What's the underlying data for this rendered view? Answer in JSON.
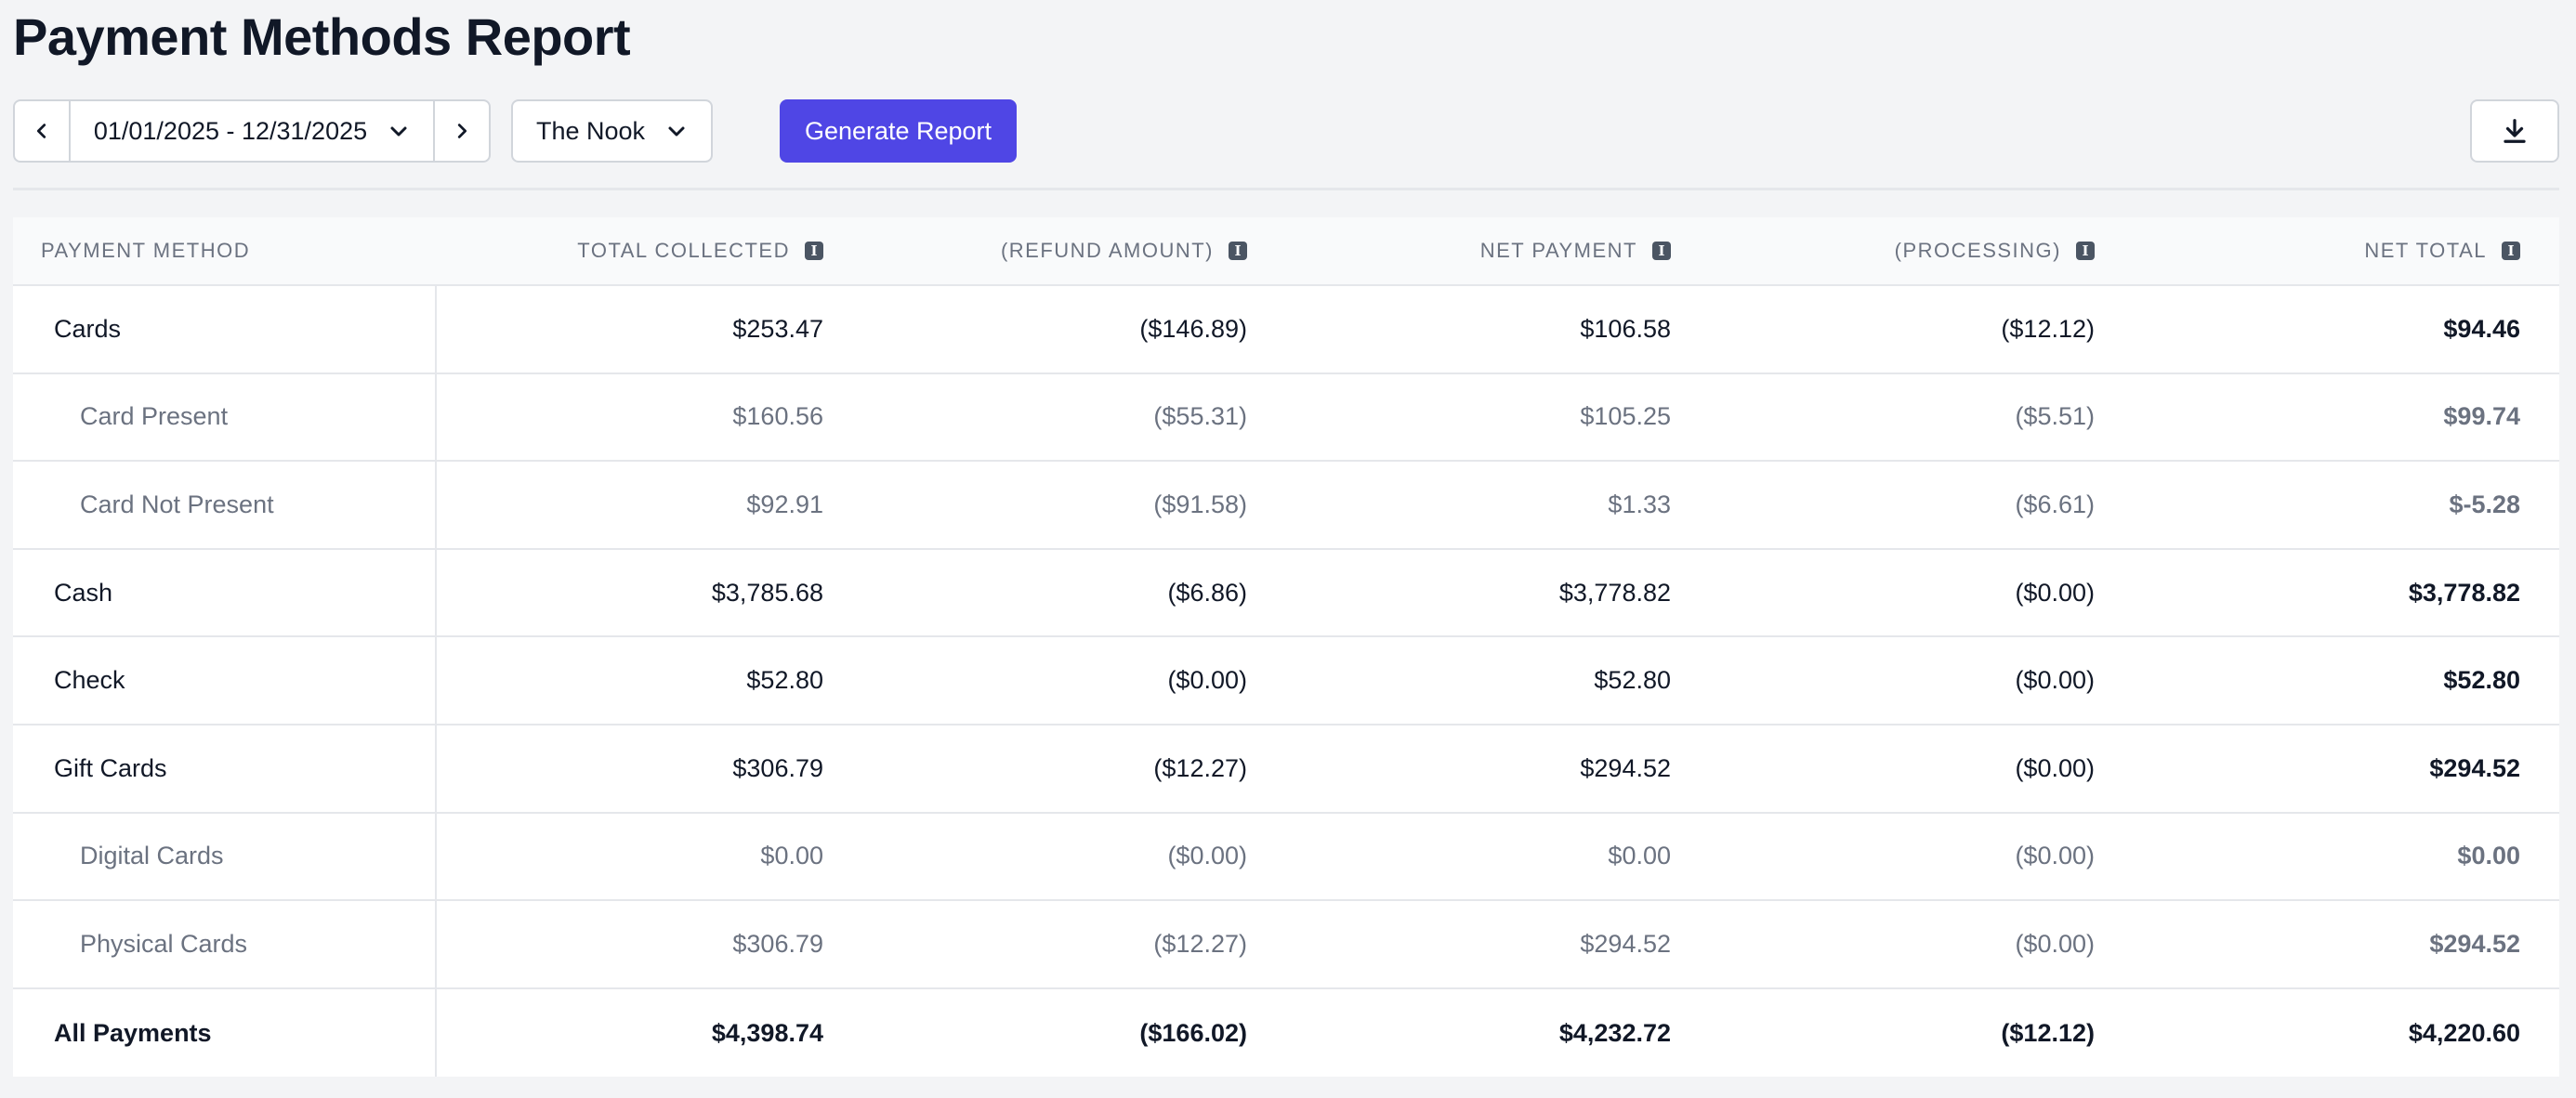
{
  "page": {
    "title": "Payment Methods Report"
  },
  "toolbar": {
    "date_range": "01/01/2025 - 12/31/2025",
    "location": "The Nook",
    "generate_label": "Generate Report"
  },
  "icons": {
    "prev": "chevron-left-icon",
    "next": "chevron-right-icon",
    "dropdown": "chevron-down-icon",
    "download": "download-icon",
    "info": "info-icon"
  },
  "colors": {
    "accent": "#4f46e5",
    "muted_text": "#6b7280",
    "border": "#e5e7eb"
  },
  "table": {
    "headers": [
      "Payment Method",
      "Total Collected",
      "(Refund Amount)",
      "Net Payment",
      "(Processing)",
      "Net Total"
    ],
    "rows": [
      {
        "type": "main",
        "cells": [
          "Cards",
          "$253.47",
          "($146.89)",
          "$106.58",
          "($12.12)",
          "$94.46"
        ]
      },
      {
        "type": "sub",
        "cells": [
          "Card Present",
          "$160.56",
          "($55.31)",
          "$105.25",
          "($5.51)",
          "$99.74"
        ]
      },
      {
        "type": "sub",
        "cells": [
          "Card Not Present",
          "$92.91",
          "($91.58)",
          "$1.33",
          "($6.61)",
          "$-5.28"
        ]
      },
      {
        "type": "main",
        "cells": [
          "Cash",
          "$3,785.68",
          "($6.86)",
          "$3,778.82",
          "($0.00)",
          "$3,778.82"
        ]
      },
      {
        "type": "main",
        "cells": [
          "Check",
          "$52.80",
          "($0.00)",
          "$52.80",
          "($0.00)",
          "$52.80"
        ]
      },
      {
        "type": "main",
        "cells": [
          "Gift Cards",
          "$306.79",
          "($12.27)",
          "$294.52",
          "($0.00)",
          "$294.52"
        ]
      },
      {
        "type": "sub",
        "cells": [
          "Digital Cards",
          "$0.00",
          "($0.00)",
          "$0.00",
          "($0.00)",
          "$0.00"
        ]
      },
      {
        "type": "sub",
        "cells": [
          "Physical Cards",
          "$306.79",
          "($12.27)",
          "$294.52",
          "($0.00)",
          "$294.52"
        ]
      },
      {
        "type": "total",
        "cells": [
          "All Payments",
          "$4,398.74",
          "($166.02)",
          "$4,232.72",
          "($12.12)",
          "$4,220.60"
        ]
      }
    ]
  }
}
